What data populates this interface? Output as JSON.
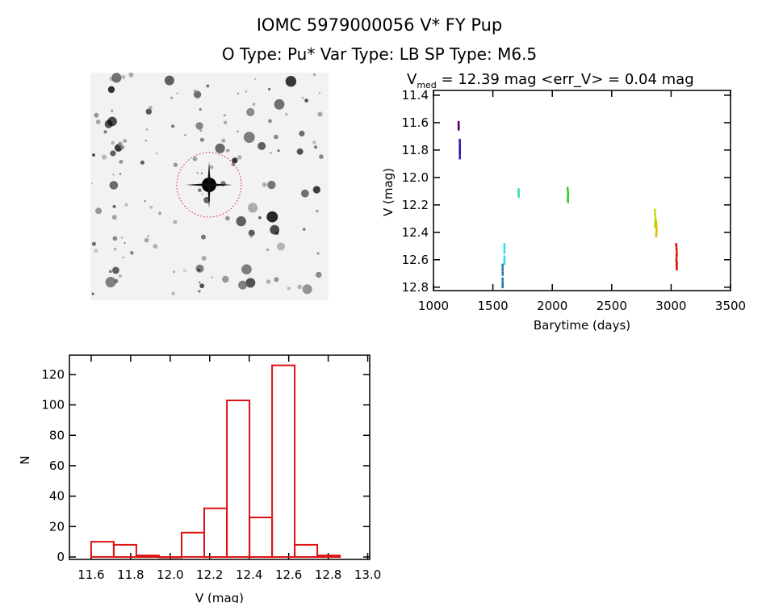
{
  "header": {
    "title": "IOMC 5979000056    V* FY Pup",
    "subtitle": "O Type: Pu*  Var Type: LB  SP Type: M6.5"
  },
  "sky_image": {
    "description_label": "",
    "target_circle_color": "#cc2222"
  },
  "chart_data": [
    {
      "type": "scatter",
      "title": "V_med = 12.39 mag <err_V> = 0.04 mag",
      "title_parts": {
        "v": "V",
        "sub": "med",
        "rest": " = 12.39 mag <err_V> = 0.04 mag"
      },
      "xlabel": "Barytime (days)",
      "ylabel": "V (mag)",
      "xlim": [
        1000,
        3500
      ],
      "ylim": [
        11.365,
        12.825
      ],
      "y_inverted": true,
      "xticks": [
        1000,
        1500,
        2000,
        2500,
        3000,
        3500
      ],
      "xtick_labels": [
        "1000",
        "1500",
        "2000",
        "2500",
        "3000",
        "3500"
      ],
      "yticks": [
        11.4,
        11.6,
        11.8,
        12.0,
        12.2,
        12.4,
        12.6,
        12.8
      ],
      "ytick_labels": [
        "11.4",
        "11.6",
        "11.8",
        "12.0",
        "12.2",
        "12.4",
        "12.6",
        "12.8"
      ],
      "grid": false,
      "series": [
        {
          "color": "#550077",
          "x": [
            1210,
            1210,
            1211,
            1210
          ],
          "y": [
            11.6,
            11.61,
            11.63,
            11.64
          ]
        },
        {
          "color": "#2a10b0",
          "x": [
            1220,
            1220,
            1221,
            1220,
            1221,
            1220
          ],
          "y": [
            11.73,
            11.76,
            11.78,
            11.8,
            11.82,
            11.85
          ]
        },
        {
          "color": "#2277aa",
          "x": [
            1580,
            1580,
            1581,
            1580,
            1581,
            1580
          ],
          "y": [
            12.64,
            12.67,
            12.7,
            12.74,
            12.77,
            12.79
          ]
        },
        {
          "color": "#33ddee",
          "x": [
            1595,
            1596,
            1595,
            1596,
            1595,
            1596
          ],
          "y": [
            12.49,
            12.51,
            12.54,
            12.58,
            12.6,
            12.62
          ]
        },
        {
          "color": "#33ddaa",
          "x": [
            1715,
            1715,
            1716
          ],
          "y": [
            12.09,
            12.11,
            12.13
          ]
        },
        {
          "color": "#33cc33",
          "x": [
            2128,
            2130,
            2132,
            2130,
            2129,
            2131
          ],
          "y": [
            12.08,
            12.1,
            12.12,
            12.14,
            12.16,
            12.17
          ]
        },
        {
          "color": "#bbdd11",
          "x": [
            2862,
            2864,
            2866,
            2865,
            2863
          ],
          "y": [
            12.24,
            12.27,
            12.3,
            12.33,
            12.35
          ]
        },
        {
          "color": "#ddbb00",
          "x": [
            2872,
            2874,
            2876,
            2875,
            2873
          ],
          "y": [
            12.32,
            12.35,
            12.38,
            12.4,
            12.42
          ]
        },
        {
          "color": "#dd1100",
          "x": [
            3042,
            3044,
            3046,
            3045,
            3043,
            3047,
            3044,
            3046
          ],
          "y": [
            12.49,
            12.52,
            12.55,
            12.57,
            12.6,
            12.62,
            12.64,
            12.66
          ]
        }
      ]
    },
    {
      "type": "bar",
      "subtype": "histogram",
      "xlabel": "V (mag)",
      "ylabel": "N",
      "xlim": [
        11.49,
        13.01
      ],
      "ylim": [
        -1.6,
        132.7
      ],
      "bin_start": 11.6,
      "bin_width": 0.1145,
      "values": [
        10,
        8,
        1,
        0,
        16,
        32,
        103,
        26,
        126,
        8,
        1
      ],
      "bar_color": "#dd1111",
      "xticks": [
        11.6,
        11.8,
        12.0,
        12.2,
        12.4,
        12.6,
        12.8,
        13.0
      ],
      "xtick_labels": [
        "11.6",
        "11.8",
        "12.0",
        "12.2",
        "12.4",
        "12.6",
        "12.8",
        "13.0"
      ],
      "yticks": [
        0,
        20,
        40,
        60,
        80,
        100,
        120
      ],
      "ytick_labels": [
        "0",
        "20",
        "40",
        "60",
        "80",
        "100",
        "120"
      ],
      "grid": false
    }
  ]
}
